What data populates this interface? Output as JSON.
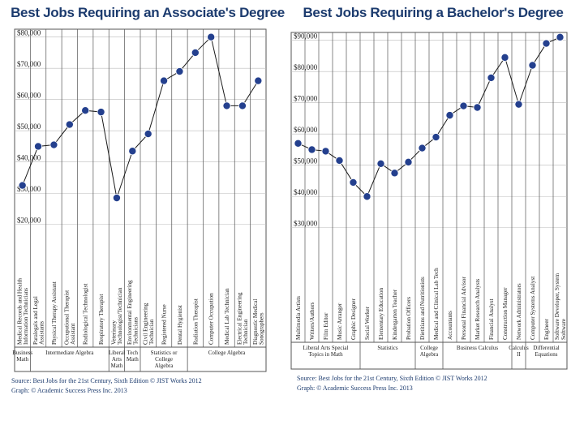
{
  "chart_data": [
    {
      "type": "line",
      "title": "Best Jobs Requiring an Associate's Degree",
      "y_tick_labels": [
        "$20,000",
        "$30,000",
        "$40,000",
        "$50,000",
        "$60,000",
        "$70,000",
        "$80,000"
      ],
      "ylim": [
        15000,
        82000
      ],
      "categories": [
        "Medical Records and Health Information Technicians",
        "Paralegals and Legal Assistants",
        "Physical Therapy Assistant",
        "Occupational Therapist Assistant",
        "Radiological Technologist",
        "Respiratory Therapist",
        "Veterinary Technologist/Technician",
        "Environmental Engineering Technicians",
        "Civil Engineering Technician",
        "Registered Nurse",
        "Dental Hygienist",
        "Radiation Therapist",
        "Computer Occupation",
        "Medical Lab Technician",
        "Electrical Engineering Technician",
        "Diagnostic Medical Sonographers"
      ],
      "values": [
        32500,
        45000,
        45500,
        52000,
        56500,
        56000,
        28500,
        43500,
        49000,
        66000,
        69000,
        75000,
        80000,
        58000,
        58000,
        66000
      ],
      "math_groups": [
        {
          "label": "Business Math",
          "start": 0,
          "end": 1
        },
        {
          "label": "Intermediate Algebra",
          "start": 1,
          "end": 6
        },
        {
          "label": "Liberal Arts Math",
          "start": 6,
          "end": 7
        },
        {
          "label": "Tech Math",
          "start": 7,
          "end": 8
        },
        {
          "label": "Statistics or College Algebra",
          "start": 8,
          "end": 11
        },
        {
          "label": "College Algebra",
          "start": 11,
          "end": 16
        }
      ],
      "grid": true,
      "source_line": "Source: Best Jobs for the 21st Century, Sixth Edition © JIST Works 2012",
      "credit_line": "Graph: © Academic Success Press Inc. 2013"
    },
    {
      "type": "line",
      "title": "Best Jobs Requiring a Bachelor's Degree",
      "y_tick_labels": [
        "$30,000",
        "$40,000",
        "$50,000",
        "$60,000",
        "$70,000",
        "$80,000",
        "$90,000"
      ],
      "ylim": [
        25000,
        92000
      ],
      "categories": [
        "Multimedia Artists",
        "Writers/Authors",
        "Film Editor",
        "Music Arranger",
        "Graphic Designer",
        "Social Worker",
        "Elementary Education",
        "Kindergarten Teacher",
        "Probation Officers",
        "Dietitians and Nutritionists",
        "Medical and Clinical Lab Tech",
        "Accountants",
        "Personal Financial Advisor",
        "Market Research Analysts",
        "Financial Analyst",
        "Construction Manager",
        "Network Administrators",
        "Computer Systems Analyst",
        "Engineer",
        "Software Developer, System Software"
      ],
      "values": [
        57000,
        55000,
        54500,
        51500,
        44500,
        40000,
        50500,
        47500,
        51000,
        55500,
        59000,
        66000,
        69000,
        68500,
        78000,
        84500,
        69500,
        82000,
        89000,
        91000
      ],
      "math_groups": [
        {
          "label": "Liberal Arts Special Topics in Math",
          "start": 0,
          "end": 5
        },
        {
          "label": "Statistics",
          "start": 5,
          "end": 9
        },
        {
          "label": "College Algebra",
          "start": 9,
          "end": 11
        },
        {
          "label": "Business Calculus",
          "start": 11,
          "end": 16
        },
        {
          "label": "Calculus II",
          "start": 16,
          "end": 17
        },
        {
          "label": "Differential Equations",
          "start": 17,
          "end": 20
        }
      ],
      "grid": true,
      "source_line": "Source: Best Jobs for the 21st Century, Sixth Edition © JIST Works 2012",
      "credit_line": "Graph: © Academic Success Press Inc. 2013"
    }
  ],
  "colors": {
    "title": "#1c3b6e",
    "line": "#1a1a1a",
    "marker": "#24408e",
    "grid": "#555555"
  }
}
